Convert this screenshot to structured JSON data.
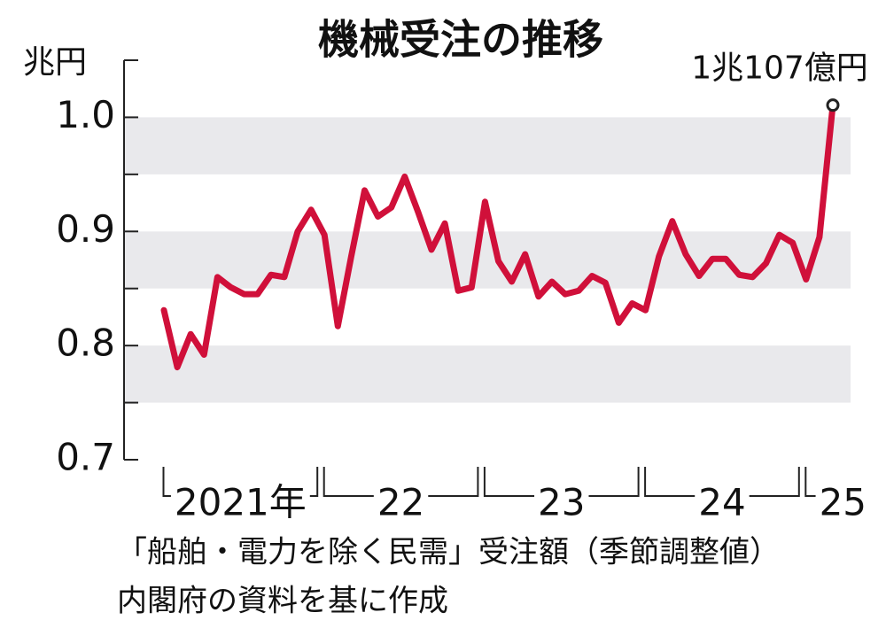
{
  "chart_data": {
    "type": "line",
    "title": "機械受注の推移",
    "y_unit": "兆円",
    "annotation": "1兆107億円",
    "notes": [
      "「船舶・電力を除く民需」受注額（季節調整値）",
      "内閣府の資料を基に作成"
    ],
    "categories": [
      "2021年",
      null,
      null,
      null,
      null,
      null,
      null,
      null,
      null,
      null,
      null,
      null,
      "22",
      null,
      null,
      null,
      null,
      null,
      null,
      null,
      null,
      null,
      null,
      null,
      "23",
      null,
      null,
      null,
      null,
      null,
      null,
      null,
      null,
      null,
      null,
      null,
      "24",
      null,
      null,
      null,
      null,
      null,
      null,
      null,
      null,
      null,
      null,
      null,
      "25",
      null,
      null
    ],
    "series": [
      {
        "name": "受注額",
        "color": "#d0103a",
        "values": [
          0.831,
          0.781,
          0.81,
          0.792,
          0.86,
          0.851,
          0.845,
          0.845,
          0.862,
          0.86,
          0.9,
          0.919,
          0.897,
          0.817,
          0.878,
          0.936,
          0.913,
          0.921,
          0.948,
          0.917,
          0.884,
          0.907,
          0.848,
          0.851,
          0.926,
          0.874,
          0.856,
          0.88,
          0.843,
          0.856,
          0.845,
          0.848,
          0.861,
          0.855,
          0.82,
          0.837,
          0.831,
          0.878,
          0.909,
          0.88,
          0.861,
          0.876,
          0.876,
          0.862,
          0.86,
          0.872,
          0.897,
          0.89,
          0.858,
          0.895,
          1.0107
        ]
      }
    ],
    "ylim": [
      0.7,
      1.05
    ],
    "yticks": [
      0.7,
      0.8,
      0.9,
      {
        "value": 1,
        "label": "1.0"
      }
    ],
    "minor_yticks": [
      0.75,
      0.85,
      0.95,
      1.05
    ],
    "bands": [
      [
        0.75,
        0.8
      ],
      [
        0.85,
        0.9
      ],
      [
        0.95,
        1
      ]
    ],
    "band_color": "#e9e9ec"
  }
}
